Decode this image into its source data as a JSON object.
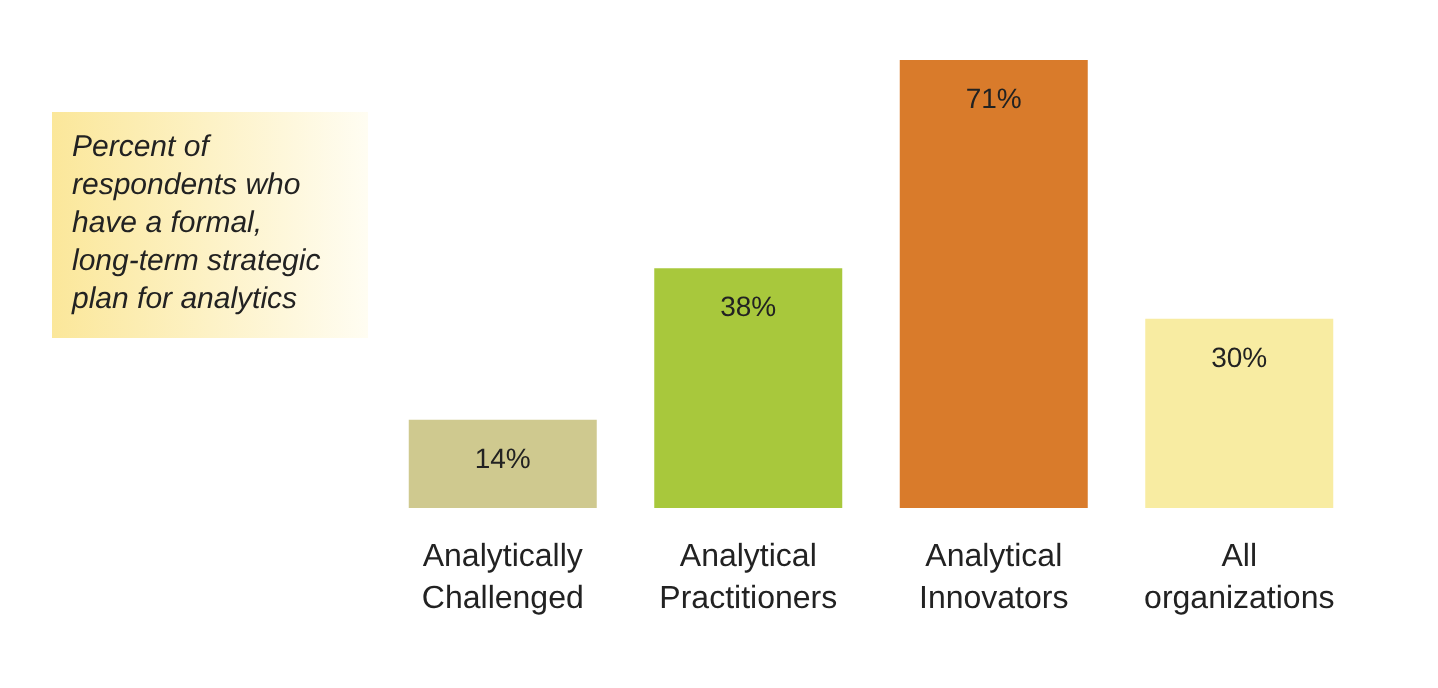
{
  "chart_data": {
    "type": "bar",
    "title": "Percent of respondents who have a formal, long-term strategic plan for analytics",
    "categories": [
      "Analytically Challenged",
      "Analytical Practitioners",
      "Analytical Innovators",
      "All organizations"
    ],
    "values": [
      14,
      38,
      71,
      30
    ],
    "value_labels": [
      "14%",
      "38%",
      "71%",
      "30%"
    ],
    "colors": [
      "#cfc98f",
      "#a8c83c",
      "#d97b2b",
      "#f8eca2"
    ]
  }
}
